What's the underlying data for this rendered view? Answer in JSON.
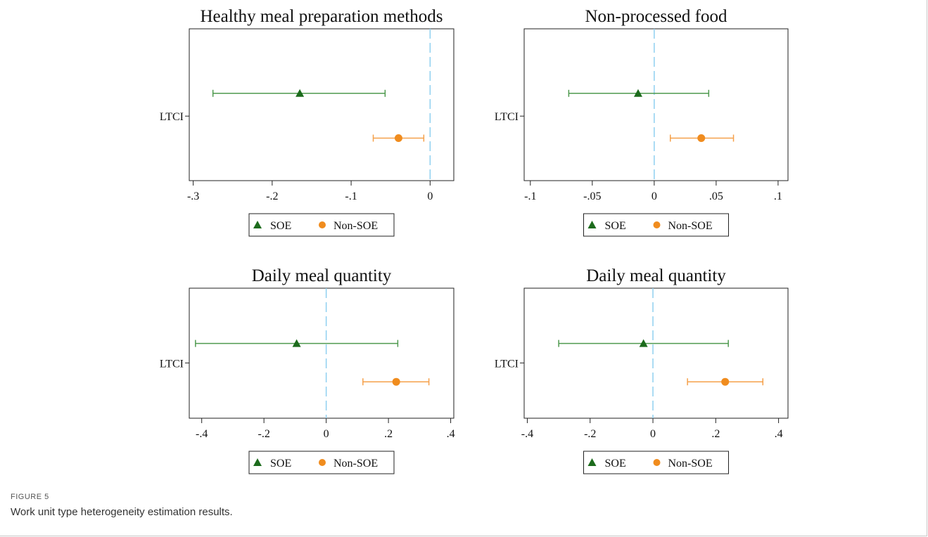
{
  "figure": {
    "label": "FIGURE 5",
    "caption": "Work unit type heterogeneity estimation results."
  },
  "colors": {
    "soe": "#4f9a4f",
    "soe_marker": "#1c6b1c",
    "non_soe": "#f5a04a",
    "non_soe_marker": "#f08c1e",
    "zero_line": "#8fd0f0"
  },
  "chart_data": [
    {
      "type": "errorbar",
      "title": "Healthy meal preparation methods",
      "category": "LTCI",
      "xlim": [
        -0.305,
        0.03
      ],
      "xticks": [
        -0.3,
        -0.2,
        -0.1,
        0
      ],
      "xtick_labels": [
        "-.3",
        "-.2",
        "-.1",
        "0"
      ],
      "zero_line": 0,
      "series": [
        {
          "name": "SOE",
          "marker": "triangle",
          "estimate": -0.165,
          "ci_low": -0.275,
          "ci_high": -0.057
        },
        {
          "name": "Non-SOE",
          "marker": "circle",
          "estimate": -0.04,
          "ci_low": -0.072,
          "ci_high": -0.008
        }
      ],
      "legend": [
        "SOE",
        "Non-SOE"
      ]
    },
    {
      "type": "errorbar",
      "title": "Non-processed food",
      "category": "LTCI",
      "xlim": [
        -0.105,
        0.108
      ],
      "xticks": [
        -0.1,
        -0.05,
        0,
        0.05,
        0.1
      ],
      "xtick_labels": [
        "-.1",
        "-.05",
        "0",
        ".05",
        ".1"
      ],
      "zero_line": 0,
      "series": [
        {
          "name": "SOE",
          "marker": "triangle",
          "estimate": -0.013,
          "ci_low": -0.069,
          "ci_high": 0.044
        },
        {
          "name": "Non-SOE",
          "marker": "circle",
          "estimate": 0.038,
          "ci_low": 0.013,
          "ci_high": 0.064
        }
      ],
      "legend": [
        "SOE",
        "Non-SOE"
      ]
    },
    {
      "type": "errorbar",
      "title": "Daily meal quantity",
      "category": "LTCI",
      "xlim": [
        -0.44,
        0.41
      ],
      "xticks": [
        -0.4,
        -0.2,
        0,
        0.2,
        0.4
      ],
      "xtick_labels": [
        "-.4",
        "-.2",
        "0",
        ".2",
        ".4"
      ],
      "zero_line": 0,
      "series": [
        {
          "name": "SOE",
          "marker": "triangle",
          "estimate": -0.095,
          "ci_low": -0.42,
          "ci_high": 0.23
        },
        {
          "name": "Non-SOE",
          "marker": "circle",
          "estimate": 0.225,
          "ci_low": 0.118,
          "ci_high": 0.33
        }
      ],
      "legend": [
        "SOE",
        "Non-SOE"
      ]
    },
    {
      "type": "errorbar",
      "title": "Daily meal quantity",
      "category": "LTCI",
      "xlim": [
        -0.41,
        0.43
      ],
      "xticks": [
        -0.4,
        -0.2,
        0,
        0.2,
        0.4
      ],
      "xtick_labels": [
        "-.4",
        "-.2",
        "0",
        ".2",
        ".4"
      ],
      "zero_line": 0,
      "series": [
        {
          "name": "SOE",
          "marker": "triangle",
          "estimate": -0.03,
          "ci_low": -0.3,
          "ci_high": 0.24
        },
        {
          "name": "Non-SOE",
          "marker": "circle",
          "estimate": 0.23,
          "ci_low": 0.11,
          "ci_high": 0.35
        }
      ],
      "legend": [
        "SOE",
        "Non-SOE"
      ]
    }
  ]
}
